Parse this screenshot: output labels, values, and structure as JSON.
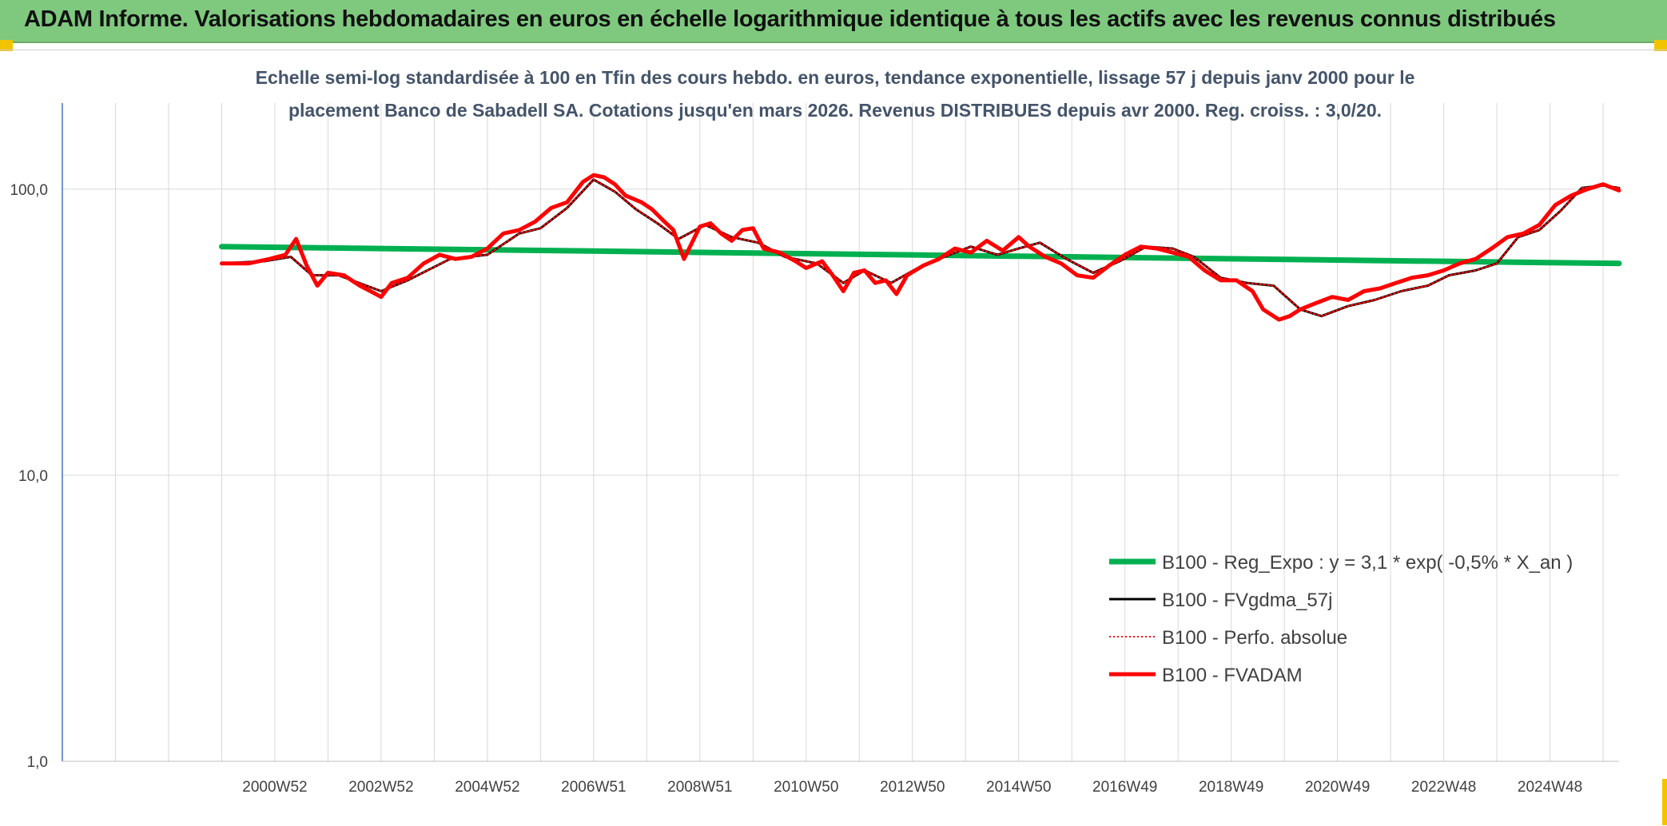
{
  "header": {
    "title": "ADAM Informe. Valorisations hebdomadaires en euros en échelle logarithmique identique à tous les actifs avec les revenus connus distribués"
  },
  "chart_data": {
    "type": "line",
    "title": "Echelle semi-log standardisée à 100 en Tfin des cours hebdo. en euros, tendance exponentielle, lissage 57 j depuis janv 2000 pour le",
    "subtitle": "placement Banco de Sabadell SA. Cotations jusqu'en mars 2026. Revenus DISTRIBUES depuis avr 2000. Reg. croiss. : 3,0/20.",
    "xlabel": "",
    "ylabel": "",
    "y_scale": "log",
    "ylim": [
      1,
      200
    ],
    "y_ticks": [
      {
        "value": 1,
        "label": "1,0"
      },
      {
        "value": 10,
        "label": "10,0"
      },
      {
        "value": 100,
        "label": "100,0"
      }
    ],
    "x_range": [
      1997.0,
      2026.3
    ],
    "x_ticks": [
      {
        "value": 2001.0,
        "label": "2000W52"
      },
      {
        "value": 2003.0,
        "label": "2002W52"
      },
      {
        "value": 2005.0,
        "label": "2004W52"
      },
      {
        "value": 2007.0,
        "label": "2006W51"
      },
      {
        "value": 2009.0,
        "label": "2008W51"
      },
      {
        "value": 2011.0,
        "label": "2010W50"
      },
      {
        "value": 2013.0,
        "label": "2012W50"
      },
      {
        "value": 2015.0,
        "label": "2014W50"
      },
      {
        "value": 2017.0,
        "label": "2016W49"
      },
      {
        "value": 2019.0,
        "label": "2018W49"
      },
      {
        "value": 2021.0,
        "label": "2020W49"
      },
      {
        "value": 2023.0,
        "label": "2022W48"
      },
      {
        "value": 2025.0,
        "label": "2024W48"
      }
    ],
    "grid": true,
    "legend_position": "bottom-right",
    "series": [
      {
        "name": "B100 - Reg_Expo : y = 3,1 * exp( -0,5% *  X_an )",
        "color": "#00b050",
        "style": "solid",
        "x": [
          2000.0,
          2026.3
        ],
        "values": [
          63,
          55
        ]
      },
      {
        "name": "B100 - FVgdma_57j",
        "color": "#000000",
        "style": "solid",
        "x": [
          2000.0,
          2000.8,
          2001.3,
          2001.7,
          2002.2,
          2003.0,
          2003.5,
          2004.3,
          2005.0,
          2005.6,
          2006.0,
          2006.5,
          2007.0,
          2007.4,
          2007.8,
          2008.2,
          2008.6,
          2009.1,
          2009.6,
          2010.1,
          2010.6,
          2011.2,
          2011.7,
          2012.1,
          2012.6,
          2013.1,
          2013.6,
          2014.1,
          2014.6,
          2015.0,
          2015.4,
          2015.9,
          2016.4,
          2016.9,
          2017.4,
          2017.9,
          2018.3,
          2018.8,
          2019.3,
          2019.8,
          2020.3,
          2020.7,
          2021.2,
          2021.7,
          2022.2,
          2022.7,
          2023.1,
          2023.6,
          2024.0,
          2024.4,
          2024.8,
          2025.2,
          2025.6,
          2026.0,
          2026.3
        ],
        "values": [
          55,
          56,
          58,
          50,
          50,
          44,
          48,
          57,
          59,
          70,
          73,
          86,
          108,
          98,
          85,
          76,
          67,
          75,
          68,
          65,
          58,
          55,
          47,
          52,
          47,
          53,
          58,
          63,
          59,
          62,
          65,
          57,
          51,
          56,
          63,
          62,
          58,
          49,
          47,
          46,
          38,
          36,
          39,
          41,
          44,
          46,
          50,
          52,
          55,
          68,
          72,
          84,
          101,
          103,
          101
        ]
      },
      {
        "name": "B100 - Perfo. absolue",
        "color": "#ff0000",
        "style": "dotted",
        "x": [
          2000.0,
          2000.8,
          2001.3,
          2001.7,
          2002.2,
          2003.0,
          2003.5,
          2004.3,
          2005.0,
          2005.6,
          2006.0,
          2006.5,
          2007.0,
          2007.4,
          2007.8,
          2008.2,
          2008.6,
          2009.1,
          2009.6,
          2010.1,
          2010.6,
          2011.2,
          2011.7,
          2012.1,
          2012.6,
          2013.1,
          2013.6,
          2014.1,
          2014.6,
          2015.0,
          2015.4,
          2015.9,
          2016.4,
          2016.9,
          2017.4,
          2017.9,
          2018.3,
          2018.8,
          2019.3,
          2019.8,
          2020.3,
          2020.7,
          2021.2,
          2021.7,
          2022.2,
          2022.7,
          2023.1,
          2023.6,
          2024.0,
          2024.4,
          2024.8,
          2025.2,
          2025.6,
          2026.0,
          2026.3
        ],
        "values": [
          55,
          56,
          58,
          50,
          50,
          44,
          48,
          57,
          59,
          70,
          73,
          86,
          108,
          98,
          85,
          76,
          67,
          75,
          68,
          65,
          58,
          55,
          47,
          52,
          47,
          53,
          58,
          63,
          59,
          62,
          65,
          57,
          51,
          56,
          63,
          62,
          58,
          49,
          47,
          46,
          38,
          36,
          39,
          41,
          44,
          46,
          50,
          52,
          55,
          68,
          72,
          84,
          101,
          103,
          101
        ]
      },
      {
        "name": "B100 - FVADAM",
        "color": "#ff0000",
        "style": "solid",
        "x": [
          2000.0,
          2000.5,
          2000.9,
          2001.2,
          2001.4,
          2001.6,
          2001.8,
          2002.0,
          2002.3,
          2002.6,
          2002.8,
          2003.0,
          2003.2,
          2003.5,
          2003.8,
          2004.1,
          2004.4,
          2004.7,
          2005.0,
          2005.3,
          2005.6,
          2005.9,
          2006.2,
          2006.5,
          2006.8,
          2007.0,
          2007.2,
          2007.4,
          2007.6,
          2007.9,
          2008.1,
          2008.3,
          2008.5,
          2008.7,
          2009.0,
          2009.2,
          2009.4,
          2009.6,
          2009.8,
          2010.0,
          2010.2,
          2010.5,
          2010.8,
          2011.0,
          2011.3,
          2011.5,
          2011.7,
          2011.9,
          2012.1,
          2012.3,
          2012.5,
          2012.7,
          2012.9,
          2013.2,
          2013.5,
          2013.8,
          2014.1,
          2014.4,
          2014.7,
          2015.0,
          2015.2,
          2015.5,
          2015.8,
          2016.1,
          2016.4,
          2016.7,
          2017.0,
          2017.3,
          2017.6,
          2017.9,
          2018.2,
          2018.5,
          2018.8,
          2019.1,
          2019.4,
          2019.6,
          2019.9,
          2020.1,
          2020.3,
          2020.6,
          2020.9,
          2021.2,
          2021.5,
          2021.8,
          2022.1,
          2022.4,
          2022.7,
          2023.0,
          2023.3,
          2023.6,
          2023.9,
          2024.2,
          2024.5,
          2024.8,
          2025.1,
          2025.4,
          2025.7,
          2026.0,
          2026.3
        ],
        "values": [
          55,
          55,
          57,
          59,
          67,
          54,
          46,
          51,
          50,
          46,
          44,
          42,
          47,
          49,
          55,
          59,
          57,
          58,
          62,
          70,
          72,
          77,
          86,
          90,
          106,
          112,
          110,
          104,
          95,
          90,
          85,
          78,
          72,
          57,
          74,
          76,
          70,
          66,
          72,
          73,
          62,
          60,
          56,
          53,
          56,
          50,
          44,
          51,
          52,
          47,
          48,
          43,
          50,
          54,
          57,
          62,
          60,
          66,
          61,
          68,
          63,
          58,
          55,
          50,
          49,
          54,
          59,
          63,
          62,
          60,
          58,
          52,
          48,
          48,
          44,
          38,
          35,
          36,
          38,
          40,
          42,
          41,
          44,
          45,
          47,
          49,
          50,
          52,
          55,
          57,
          62,
          68,
          70,
          75,
          88,
          95,
          100,
          104,
          99
        ]
      }
    ]
  }
}
